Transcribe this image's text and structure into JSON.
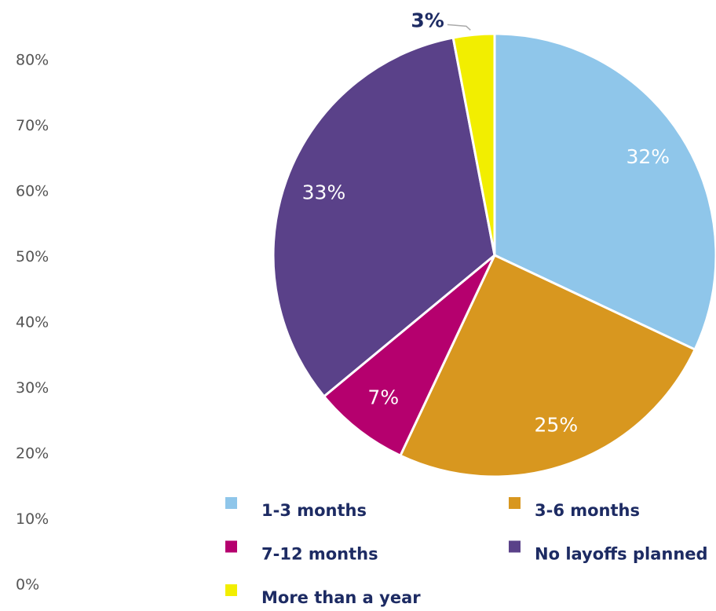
{
  "chart_data": {
    "type": "pie",
    "categories": [
      "1-3 months",
      "3-6 months",
      "7-12 months",
      "No layoffs planned",
      "More than a year"
    ],
    "values": [
      32,
      25,
      7,
      33,
      3
    ],
    "value_labels": [
      "32%",
      "25%",
      "7%",
      "33%",
      "3%"
    ],
    "colors": [
      "#8fc6ea",
      "#d8971f",
      "#b5006e",
      "#5a4189",
      "#f2ee00"
    ],
    "ylim": [
      0,
      80
    ],
    "yticks": [
      {
        "value": 0,
        "label": "0%"
      },
      {
        "value": 10,
        "label": "10%"
      },
      {
        "value": 20,
        "label": "20%"
      },
      {
        "value": 30,
        "label": "30%"
      },
      {
        "value": 40,
        "label": "40%"
      },
      {
        "value": 50,
        "label": "50%"
      },
      {
        "value": 60,
        "label": "60%"
      },
      {
        "value": 70,
        "label": "70%"
      },
      {
        "value": 80,
        "label": "80%"
      }
    ]
  }
}
